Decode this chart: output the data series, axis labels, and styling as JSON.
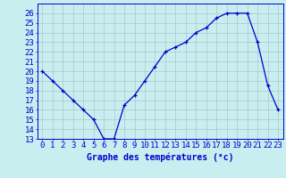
{
  "hours": [
    0,
    1,
    2,
    3,
    4,
    5,
    6,
    7,
    8,
    9,
    10,
    11,
    12,
    13,
    14,
    15,
    16,
    17,
    18,
    19,
    20,
    21,
    22,
    23
  ],
  "temps": [
    20,
    19,
    18,
    17,
    16,
    15,
    13,
    13,
    16.5,
    17.5,
    19,
    20.5,
    22,
    22.5,
    23,
    24,
    24.5,
    25.5,
    26,
    26,
    26,
    23,
    18.5,
    16
  ],
  "line_color": "#0000cc",
  "marker": "+",
  "bg_color": "#c8eef0",
  "grid_color": "#b0c4cc",
  "xlabel": "Graphe des températures (°c)",
  "xlabel_color": "#0000cc",
  "tick_color": "#0000cc",
  "ylim": [
    13,
    27
  ],
  "yticks": [
    13,
    14,
    15,
    16,
    17,
    18,
    19,
    20,
    21,
    22,
    23,
    24,
    25,
    26
  ],
  "xlim": [
    -0.5,
    23.5
  ],
  "font_size": 6.5
}
